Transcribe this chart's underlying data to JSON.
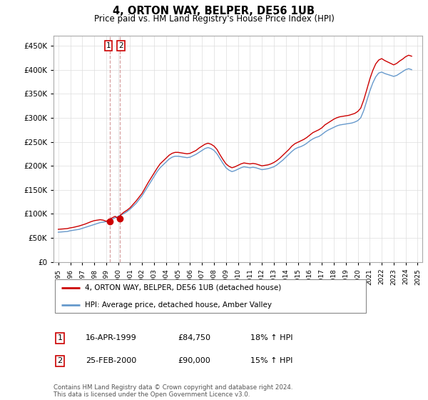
{
  "title": "4, ORTON WAY, BELPER, DE56 1UB",
  "subtitle": "Price paid vs. HM Land Registry's House Price Index (HPI)",
  "ytick_values": [
    0,
    50000,
    100000,
    150000,
    200000,
    250000,
    300000,
    350000,
    400000,
    450000
  ],
  "ylim": [
    0,
    470000
  ],
  "xlim_start": 1994.6,
  "xlim_end": 2025.4,
  "legend_label_red": "4, ORTON WAY, BELPER, DE56 1UB (detached house)",
  "legend_label_blue": "HPI: Average price, detached house, Amber Valley",
  "transaction1_date": "16-APR-1999",
  "transaction1_price": "£84,750",
  "transaction1_hpi": "18% ↑ HPI",
  "transaction2_date": "25-FEB-2000",
  "transaction2_price": "£90,000",
  "transaction2_hpi": "15% ↑ HPI",
  "footer": "Contains HM Land Registry data © Crown copyright and database right 2024.\nThis data is licensed under the Open Government Licence v3.0.",
  "red_color": "#cc0000",
  "blue_color": "#6699cc",
  "dashed_color": "#cc8888",
  "hpi_years": [
    1995.0,
    1995.25,
    1995.5,
    1995.75,
    1996.0,
    1996.25,
    1996.5,
    1996.75,
    1997.0,
    1997.25,
    1997.5,
    1997.75,
    1998.0,
    1998.25,
    1998.5,
    1998.75,
    1999.0,
    1999.25,
    1999.5,
    1999.75,
    2000.0,
    2000.25,
    2000.5,
    2000.75,
    2001.0,
    2001.25,
    2001.5,
    2001.75,
    2002.0,
    2002.25,
    2002.5,
    2002.75,
    2003.0,
    2003.25,
    2003.5,
    2003.75,
    2004.0,
    2004.25,
    2004.5,
    2004.75,
    2005.0,
    2005.25,
    2005.5,
    2005.75,
    2006.0,
    2006.25,
    2006.5,
    2006.75,
    2007.0,
    2007.25,
    2007.5,
    2007.75,
    2008.0,
    2008.25,
    2008.5,
    2008.75,
    2009.0,
    2009.25,
    2009.5,
    2009.75,
    2010.0,
    2010.25,
    2010.5,
    2010.75,
    2011.0,
    2011.25,
    2011.5,
    2011.75,
    2012.0,
    2012.25,
    2012.5,
    2012.75,
    2013.0,
    2013.25,
    2013.5,
    2013.75,
    2014.0,
    2014.25,
    2014.5,
    2014.75,
    2015.0,
    2015.25,
    2015.5,
    2015.75,
    2016.0,
    2016.25,
    2016.5,
    2016.75,
    2017.0,
    2017.25,
    2017.5,
    2017.75,
    2018.0,
    2018.25,
    2018.5,
    2018.75,
    2019.0,
    2019.25,
    2019.5,
    2019.75,
    2020.0,
    2020.25,
    2020.5,
    2020.75,
    2021.0,
    2021.25,
    2021.5,
    2021.75,
    2022.0,
    2022.25,
    2022.5,
    2022.75,
    2023.0,
    2023.25,
    2023.5,
    2023.75,
    2024.0,
    2024.25,
    2024.5
  ],
  "hpi_values": [
    62000,
    62500,
    63000,
    63500,
    65000,
    66000,
    67000,
    68000,
    70000,
    72000,
    74000,
    76000,
    78000,
    80000,
    82000,
    83000,
    84000,
    86000,
    89000,
    92000,
    95000,
    98000,
    101000,
    105000,
    110000,
    116000,
    122000,
    130000,
    138000,
    148000,
    158000,
    168000,
    178000,
    188000,
    196000,
    202000,
    208000,
    214000,
    218000,
    220000,
    220000,
    219000,
    218000,
    217000,
    218000,
    221000,
    224000,
    228000,
    232000,
    236000,
    238000,
    236000,
    232000,
    225000,
    215000,
    205000,
    196000,
    191000,
    188000,
    190000,
    193000,
    196000,
    198000,
    197000,
    196000,
    197000,
    196000,
    194000,
    192000,
    193000,
    194000,
    196000,
    198000,
    202000,
    207000,
    212000,
    218000,
    224000,
    230000,
    235000,
    238000,
    240000,
    243000,
    247000,
    252000,
    256000,
    259000,
    261000,
    265000,
    270000,
    274000,
    277000,
    280000,
    283000,
    285000,
    286000,
    287000,
    288000,
    289000,
    291000,
    294000,
    300000,
    315000,
    335000,
    355000,
    372000,
    385000,
    393000,
    395000,
    392000,
    390000,
    388000,
    386000,
    388000,
    392000,
    396000,
    400000,
    402000,
    400000
  ],
  "red_years": [
    1995.0,
    1995.25,
    1995.5,
    1995.75,
    1996.0,
    1996.25,
    1996.5,
    1996.75,
    1997.0,
    1997.25,
    1997.5,
    1997.75,
    1998.0,
    1998.25,
    1998.5,
    1998.75,
    1999.0,
    1999.25,
    1999.5,
    1999.75,
    2000.0,
    2000.25,
    2000.5,
    2000.75,
    2001.0,
    2001.25,
    2001.5,
    2001.75,
    2002.0,
    2002.25,
    2002.5,
    2002.75,
    2003.0,
    2003.25,
    2003.5,
    2003.75,
    2004.0,
    2004.25,
    2004.5,
    2004.75,
    2005.0,
    2005.25,
    2005.5,
    2005.75,
    2006.0,
    2006.25,
    2006.5,
    2006.75,
    2007.0,
    2007.25,
    2007.5,
    2007.75,
    2008.0,
    2008.25,
    2008.5,
    2008.75,
    2009.0,
    2009.25,
    2009.5,
    2009.75,
    2010.0,
    2010.25,
    2010.5,
    2010.75,
    2011.0,
    2011.25,
    2011.5,
    2011.75,
    2012.0,
    2012.25,
    2012.5,
    2012.75,
    2013.0,
    2013.25,
    2013.5,
    2013.75,
    2014.0,
    2014.25,
    2014.5,
    2014.75,
    2015.0,
    2015.25,
    2015.5,
    2015.75,
    2016.0,
    2016.25,
    2016.5,
    2016.75,
    2017.0,
    2017.25,
    2017.5,
    2017.75,
    2018.0,
    2018.25,
    2018.5,
    2018.75,
    2019.0,
    2019.25,
    2019.5,
    2019.75,
    2020.0,
    2020.25,
    2020.5,
    2020.75,
    2021.0,
    2021.25,
    2021.5,
    2021.75,
    2022.0,
    2022.25,
    2022.5,
    2022.75,
    2023.0,
    2023.25,
    2023.5,
    2023.75,
    2024.0,
    2024.25,
    2024.5
  ],
  "red_values": [
    68000,
    68500,
    69000,
    69500,
    71000,
    72000,
    73500,
    75000,
    77000,
    79000,
    81500,
    84000,
    86000,
    87000,
    88000,
    87000,
    84750,
    88000,
    92000,
    95000,
    90000,
    99000,
    104000,
    108000,
    113000,
    120000,
    127000,
    135000,
    143000,
    154000,
    165000,
    175000,
    185000,
    195000,
    204000,
    210000,
    216000,
    222000,
    226000,
    228000,
    228000,
    227000,
    226000,
    225000,
    226000,
    229000,
    232000,
    237000,
    241000,
    245000,
    247000,
    245000,
    241000,
    234000,
    223000,
    213000,
    204000,
    199000,
    196000,
    198000,
    201000,
    204000,
    206000,
    205000,
    204000,
    205000,
    204000,
    202000,
    200000,
    201000,
    202000,
    204000,
    207000,
    211000,
    216000,
    222000,
    228000,
    234000,
    241000,
    246000,
    249000,
    252000,
    255000,
    259000,
    264000,
    269000,
    272000,
    275000,
    279000,
    285000,
    289000,
    293000,
    297000,
    300000,
    302000,
    303000,
    304000,
    305000,
    307000,
    309000,
    313000,
    320000,
    337000,
    358000,
    380000,
    398000,
    412000,
    420000,
    423000,
    419000,
    416000,
    413000,
    410000,
    413000,
    418000,
    422000,
    427000,
    430000,
    428000
  ],
  "transaction1_x": 1999.29,
  "transaction1_y": 84750,
  "transaction2_x": 2000.12,
  "transaction2_y": 90000,
  "vline1_x": 1999.29,
  "vline2_x": 2000.12
}
